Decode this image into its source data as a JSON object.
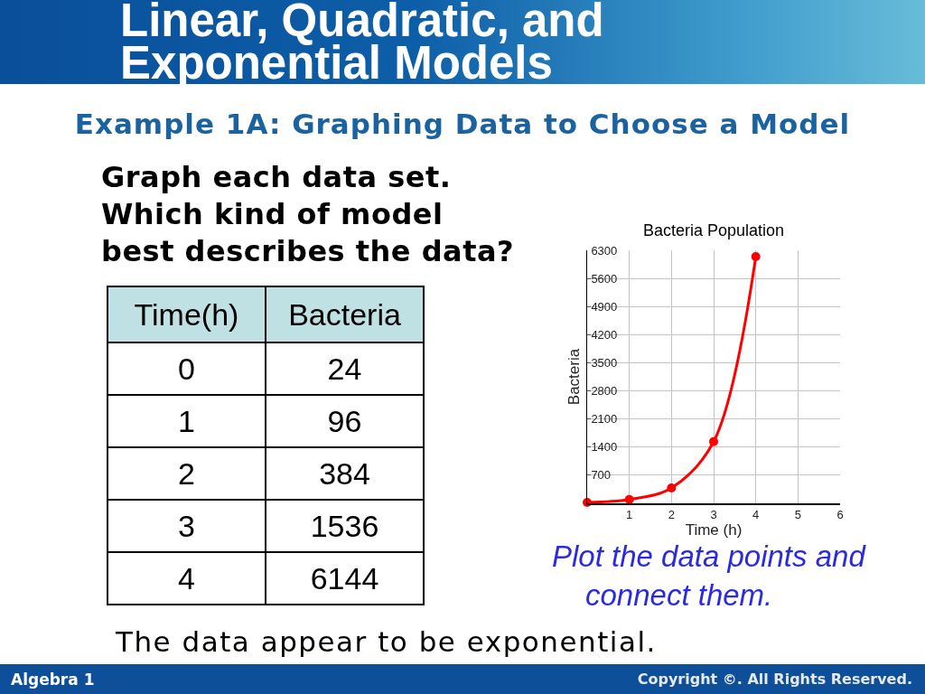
{
  "chart_data": [
    {
      "type": "heatmap",
      "title": "Linear, Quadratic, and Exponential Models",
      "subtitle": "Example 1A: Graphing Data to Choose a Model",
      "ylabel": "Time(h)",
      "categories": [
        "Bacteria"
      ],
      "y_categories": [
        "0",
        "1",
        "2",
        "3",
        "4"
      ],
      "cells": [
        [
          24
        ],
        [
          96
        ],
        [
          384
        ],
        [
          1536
        ],
        [
          6144
        ]
      ],
      "data_labels": true,
      "annotations": [
        "Graph each data set. Which kind of model best describes the data?",
        "The data appear to be exponential.",
        "Algebra 1",
        "Copyright ©. All Rights Reserved."
      ]
    },
    {
      "type": "line",
      "title": "Bacteria Population",
      "xlabel": "Time (h)",
      "ylabel": "Bacteria",
      "x": [
        0,
        1,
        2,
        3,
        4
      ],
      "series": [
        {
          "color": "#ff0000",
          "values": [
            24,
            96,
            384,
            1536,
            6144
          ]
        }
      ],
      "xlim": [
        0,
        6
      ],
      "xticks": [
        1,
        2,
        3,
        4,
        5,
        6
      ],
      "ylim": [
        0,
        6300
      ],
      "yticks": [
        700,
        1400,
        2100,
        2800,
        3500,
        4200,
        4900,
        5600,
        6300
      ],
      "grid": true,
      "marker": "circle",
      "line_style": "solid",
      "annotations": [
        "Plot the data points and connect them."
      ]
    }
  ]
}
